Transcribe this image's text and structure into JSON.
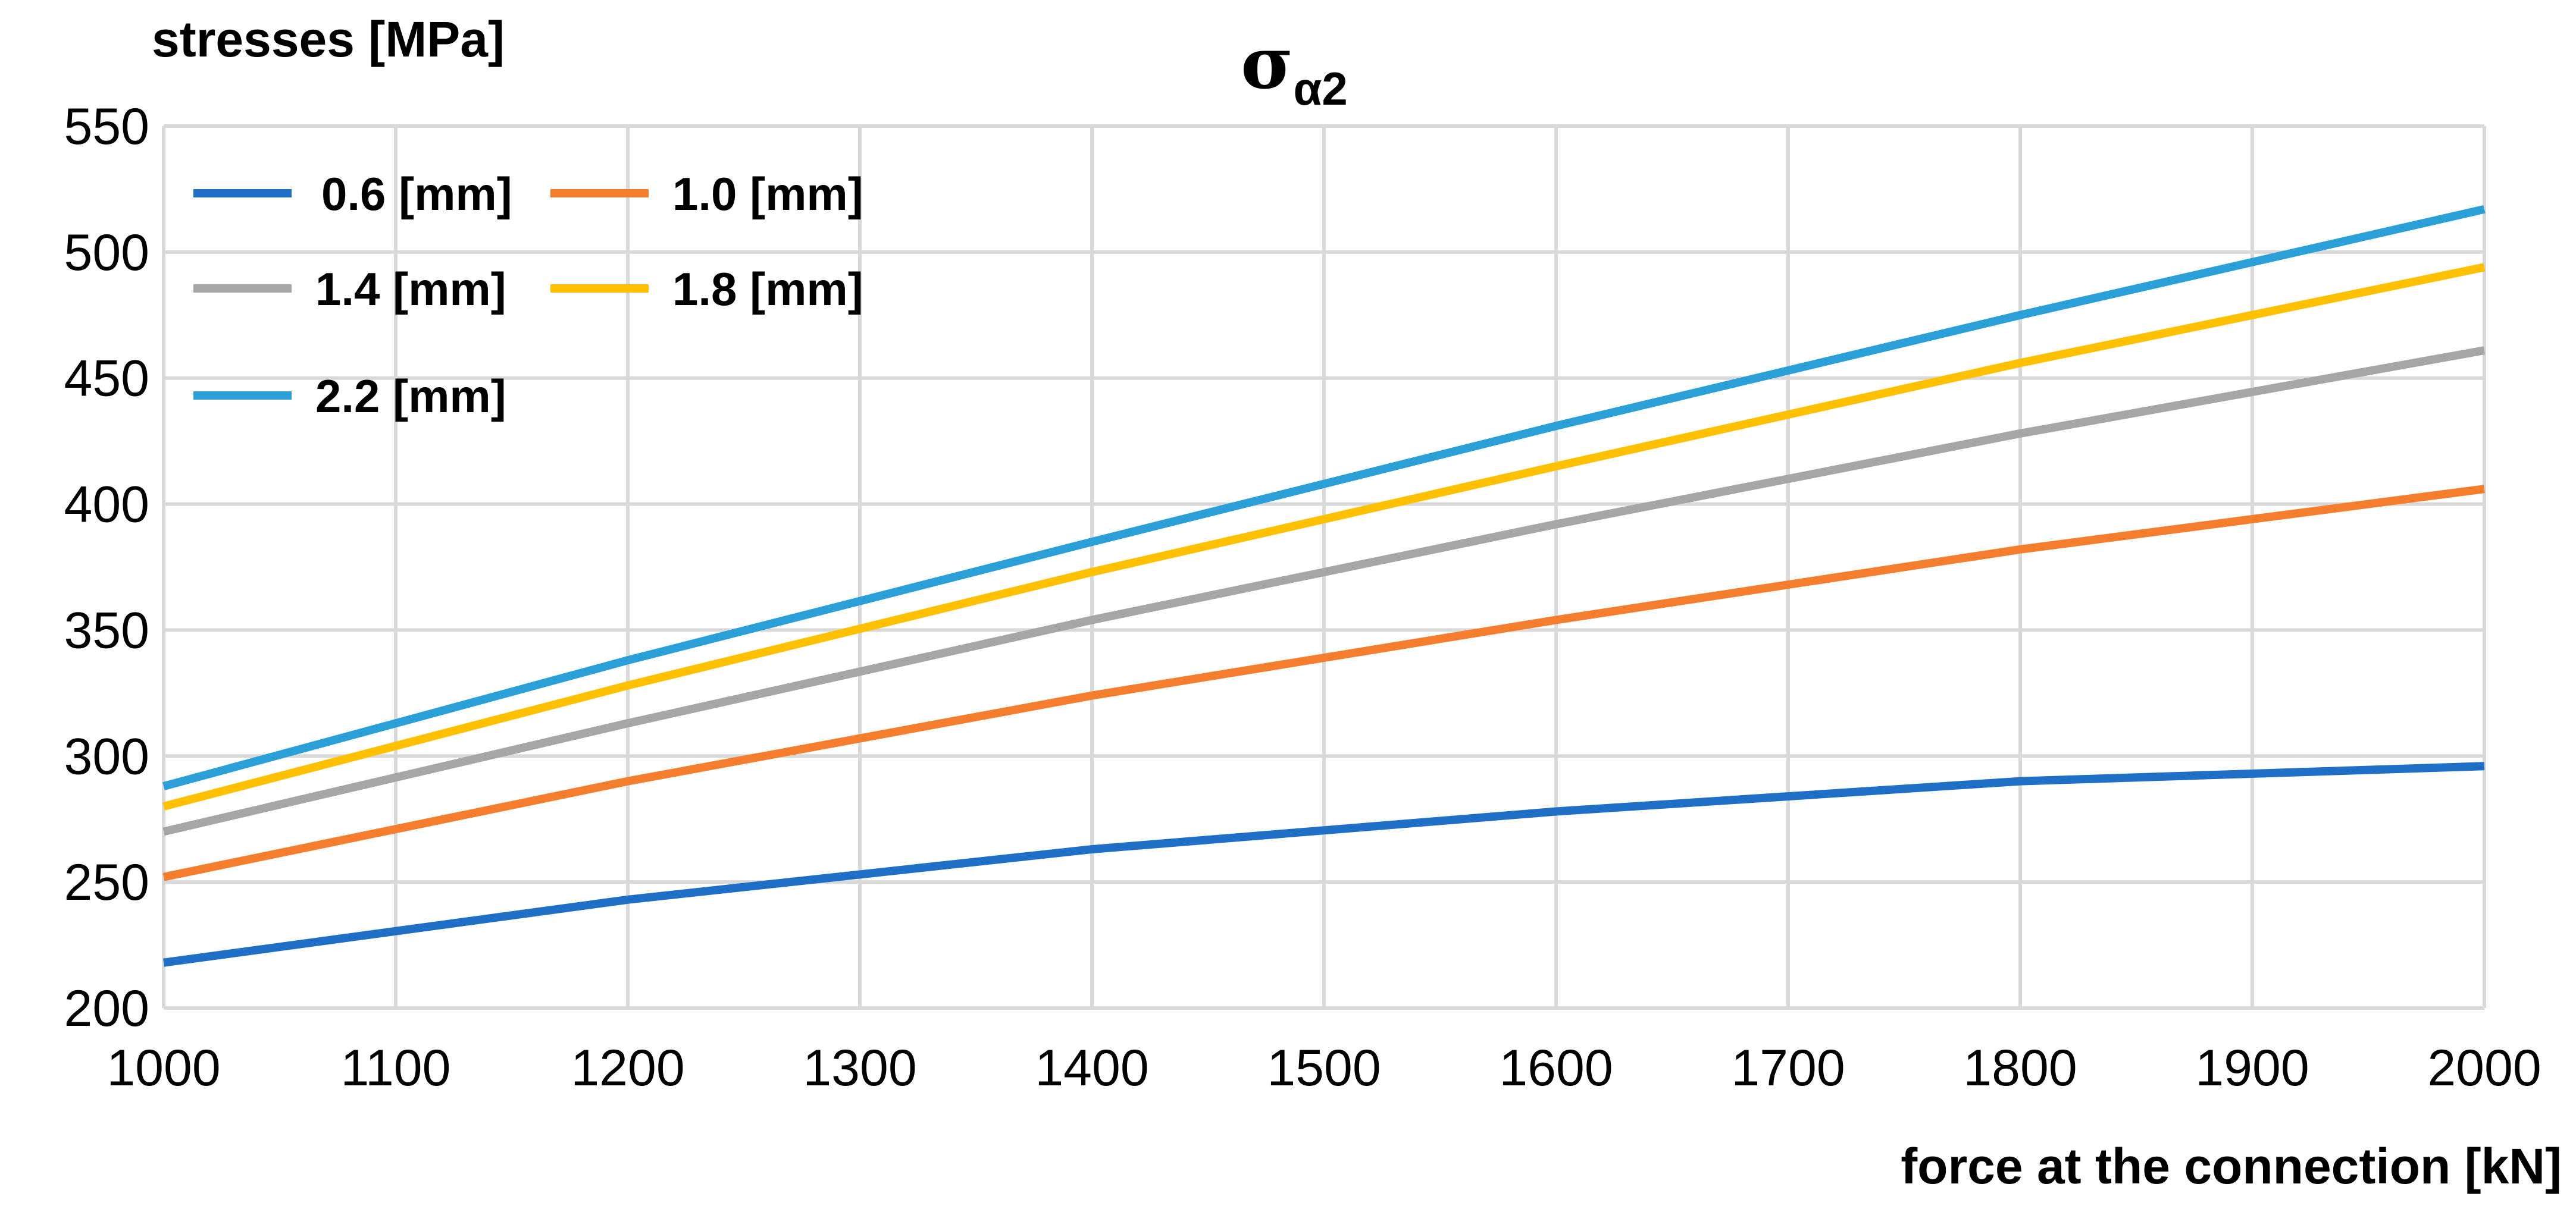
{
  "chart_data": {
    "type": "line",
    "title": "σ",
    "title_subscript": "α2",
    "xlabel": "force at the connection [kN]",
    "ylabel": "stresses [MPa]",
    "xlim": [
      1000,
      2000
    ],
    "ylim": [
      200,
      550
    ],
    "xticks": [
      1000,
      1100,
      1200,
      1300,
      1400,
      1500,
      1600,
      1700,
      1800,
      1900,
      2000
    ],
    "yticks": [
      200,
      250,
      300,
      350,
      400,
      450,
      500,
      550
    ],
    "grid": true,
    "legend_position": "top-left",
    "x": [
      1000,
      1200,
      1400,
      1600,
      1800,
      2000
    ],
    "series": [
      {
        "name": "0.6 [mm]",
        "color": "#1F6FC6",
        "values": [
          218,
          243,
          263,
          278,
          290,
          296
        ]
      },
      {
        "name": "1.0 [mm]",
        "color": "#F47E2E",
        "values": [
          252,
          290,
          324,
          354,
          382,
          406
        ]
      },
      {
        "name": "1.4 [mm]",
        "color": "#A6A6A6",
        "values": [
          270,
          313,
          354,
          392,
          428,
          461
        ]
      },
      {
        "name": "1.8 [mm]",
        "color": "#FFC000",
        "values": [
          280,
          328,
          373,
          415,
          456,
          494
        ]
      },
      {
        "name": "2.2 [mm]",
        "color": "#2B9FD8",
        "values": [
          288,
          338,
          385,
          431,
          475,
          517
        ]
      }
    ]
  }
}
